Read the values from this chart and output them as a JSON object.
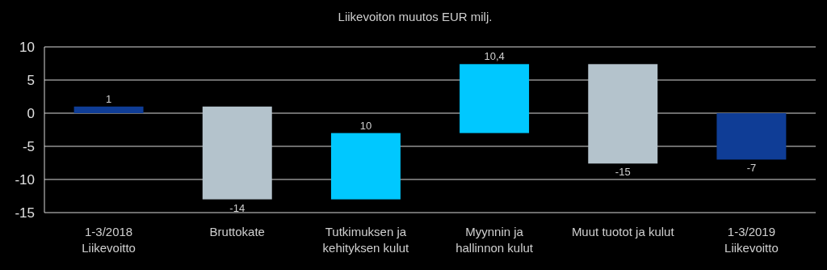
{
  "chart_data": {
    "type": "bar",
    "title": "Liikevoiton muutos EUR milj.",
    "categories": [
      "1-3/2018\nLiikevoitto",
      "Bruttokate",
      "Tutkimuksen ja\nkehityksen kulut",
      "Myynnin ja\nhallinnon kulut",
      "Muut tuotot ja kulut",
      "1-3/2019\nLiikevoitto"
    ],
    "values": [
      1,
      -14,
      10,
      10.4,
      -15,
      -7
    ],
    "base": [
      0,
      1,
      -13,
      -3,
      7.4,
      0
    ],
    "colors": [
      "#0f3d96",
      "#b4c3cc",
      "#00c8ff",
      "#00c8ff",
      "#b4c3cc",
      "#0f3d96"
    ],
    "value_labels": [
      "1",
      "-14",
      "10",
      "10,4",
      "-15",
      "-7"
    ],
    "ylim": [
      -15,
      10
    ],
    "yticks": [
      -15,
      -10,
      -5,
      0,
      5,
      10
    ],
    "grid": "y"
  }
}
